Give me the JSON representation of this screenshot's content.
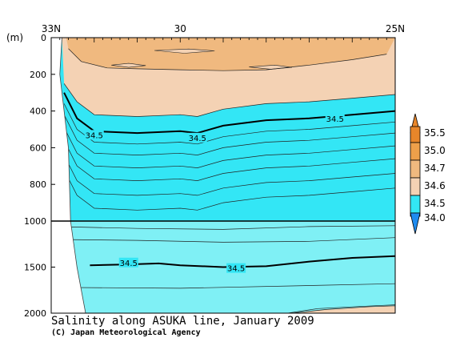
{
  "chart_data": {
    "type": "contour-section",
    "title": "Salinity along ASUKA line, January 2009",
    "credit": "(C) Japan Meteorological Agency",
    "y_unit": "(m)",
    "x_ticks": [
      {
        "label": "33N",
        "lat": 33
      },
      {
        "label": "30",
        "lat": 30
      },
      {
        "label": "25N",
        "lat": 25
      }
    ],
    "x_range": [
      33,
      25
    ],
    "y_upper": {
      "range": [
        0,
        1000
      ],
      "ticks": [
        "0",
        "200",
        "400",
        "600",
        "800",
        "1000"
      ]
    },
    "y_lower": {
      "range": [
        1000,
        2000
      ],
      "ticks": [
        "1500",
        "2000"
      ]
    },
    "levels": [
      34.0,
      34.5,
      34.6,
      34.7,
      35.0,
      35.5
    ],
    "colorbar_labels": [
      "35.5",
      "35.0",
      "34.7",
      "34.6",
      "34.5",
      "34.0"
    ],
    "colors": {
      "below_34_0": "#1f8cf0",
      "band_34_0_34_5": "#33e6f5",
      "band_34_5_34_6": "#7ff0f5",
      "band_34_6_34_7": "#f4d2b4",
      "band_34_7_35_0": "#f0b97f",
      "band_35_0_35_5": "#eea04a",
      "above_35_5": "#e8862a"
    },
    "contour_labels": [
      {
        "text": "34.5",
        "lat": 32.0,
        "depth": 530
      },
      {
        "text": "34.5",
        "lat": 29.6,
        "depth": 545
      },
      {
        "text": "34.5",
        "lat": 26.4,
        "depth": 440
      },
      {
        "text": "34.5",
        "lat": 31.2,
        "depth": 1450
      },
      {
        "text": "34.5",
        "lat": 28.7,
        "depth": 1510
      }
    ],
    "isohaline_34_5_upper": [
      [
        32.7,
        300
      ],
      [
        32.4,
        440
      ],
      [
        32.0,
        510
      ],
      [
        31.0,
        520
      ],
      [
        30.0,
        510
      ],
      [
        29.6,
        520
      ],
      [
        29.0,
        480
      ],
      [
        28.0,
        450
      ],
      [
        27.0,
        440
      ],
      [
        26.0,
        420
      ],
      [
        25.0,
        400
      ]
    ],
    "isohaline_34_5_lower": [
      [
        32.1,
        1480
      ],
      [
        31.2,
        1470
      ],
      [
        30.5,
        1460
      ],
      [
        30.0,
        1480
      ],
      [
        29.0,
        1500
      ],
      [
        28.0,
        1490
      ],
      [
        27.0,
        1440
      ],
      [
        26.0,
        1400
      ],
      [
        25.0,
        1380
      ]
    ]
  }
}
